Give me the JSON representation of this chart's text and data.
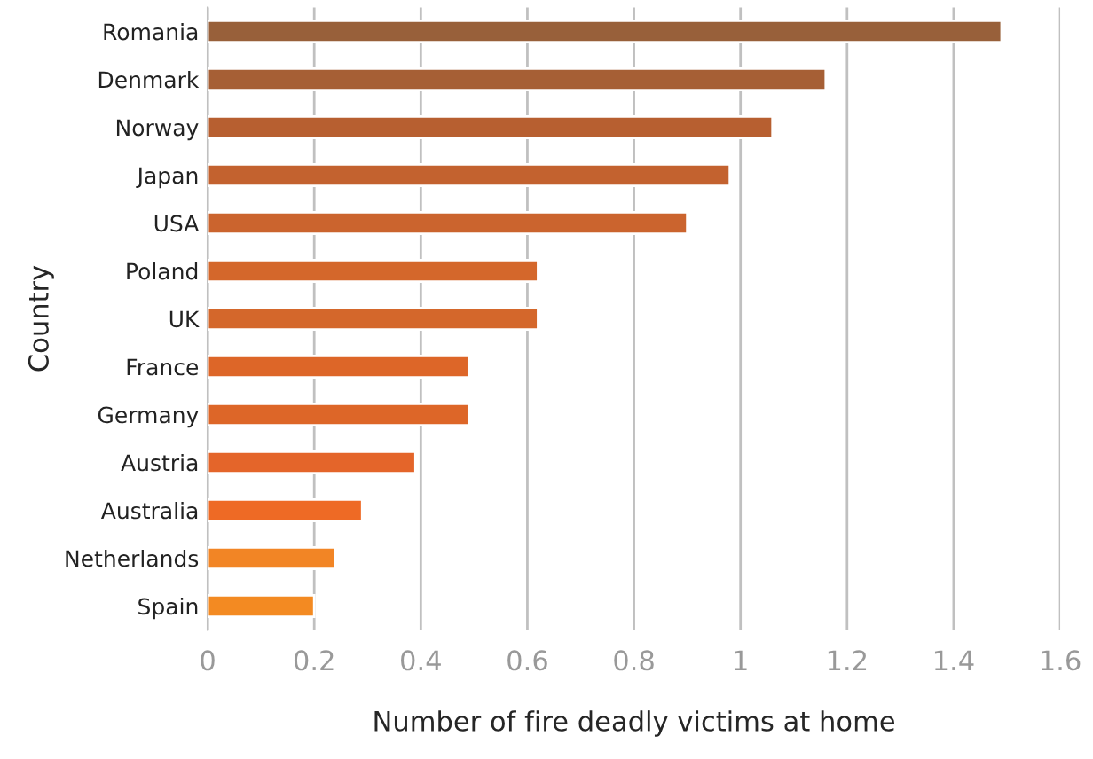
{
  "chart_data": {
    "type": "bar",
    "orientation": "horizontal",
    "xlabel": "Number of fire deadly victims at home",
    "ylabel": "Country",
    "categories": [
      "Romania",
      "Denmark",
      "Norway",
      "Japan",
      "USA",
      "Poland",
      "UK",
      "France",
      "Germany",
      "Austria",
      "Australia",
      "Netherlands",
      "Spain"
    ],
    "values": [
      1.49,
      1.16,
      1.06,
      0.98,
      0.9,
      0.62,
      0.62,
      0.49,
      0.49,
      0.39,
      0.29,
      0.24,
      0.2
    ],
    "colors": [
      "#98603a",
      "#a65f35",
      "#b75f30",
      "#c3622f",
      "#cb642e",
      "#d4672b",
      "#d4672b",
      "#dd6628",
      "#dd6628",
      "#e4652a",
      "#ee6a25",
      "#f28525",
      "#f38a22"
    ],
    "xlim": [
      0,
      1.6
    ],
    "xticks": [
      0,
      0.2,
      0.4,
      0.6,
      0.8,
      1,
      1.2,
      1.4,
      1.6
    ],
    "grid": "x",
    "legend": false
  }
}
